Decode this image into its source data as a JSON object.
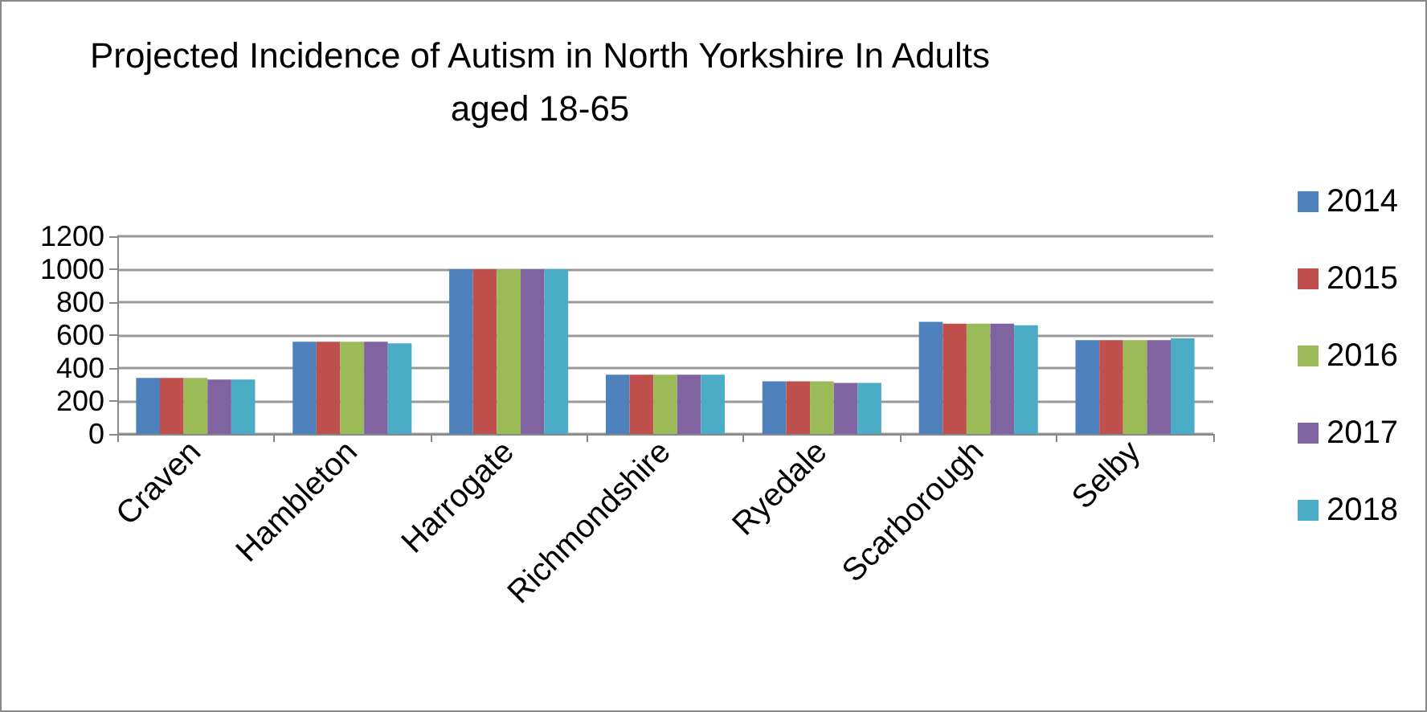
{
  "chart_data": {
    "type": "bar",
    "title": "Projected Incidence of Autism in North Yorkshire In Adults\naged 18-65",
    "categories": [
      "Craven",
      "Hambleton",
      "Harrogate",
      "Richmondshire",
      "Ryedale",
      "Scarborough",
      "Selby"
    ],
    "series": [
      {
        "name": "2014",
        "color": "#4f81bd",
        "values": [
          340,
          560,
          1000,
          360,
          320,
          680,
          570
        ]
      },
      {
        "name": "2015",
        "color": "#c0504d",
        "values": [
          340,
          560,
          1000,
          360,
          320,
          670,
          570
        ]
      },
      {
        "name": "2016",
        "color": "#9bbb59",
        "values": [
          340,
          560,
          1000,
          360,
          320,
          670,
          570
        ]
      },
      {
        "name": "2017",
        "color": "#8064a2",
        "values": [
          330,
          560,
          1000,
          360,
          310,
          670,
          570
        ]
      },
      {
        "name": "2018",
        "color": "#4bacc6",
        "values": [
          330,
          550,
          1000,
          360,
          310,
          660,
          580
        ]
      }
    ],
    "ylim": [
      0,
      1200
    ],
    "yticks": [
      0,
      200,
      400,
      600,
      800,
      1000,
      1200
    ],
    "grid": "y",
    "legend": "right"
  }
}
